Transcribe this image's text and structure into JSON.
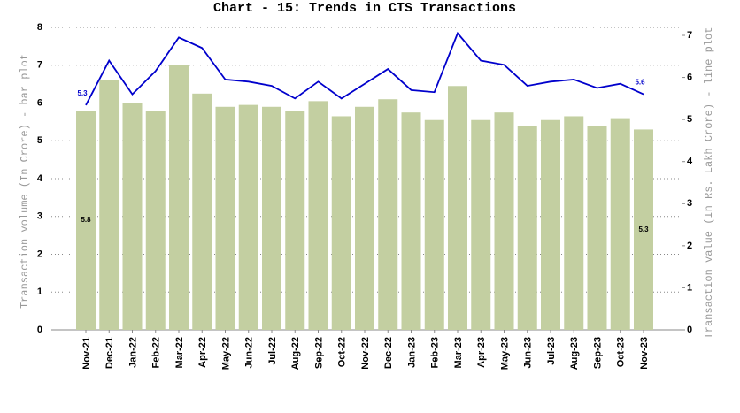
{
  "chart_data": {
    "type": "bar_line",
    "title": "Chart - 15: Trends in CTS Transactions",
    "y_label": "Transaction volume (In Crore) - bar plot",
    "y2_label": "Transaction value (In Rs. Lakh Crore) - line plot",
    "categories": [
      "Nov-21",
      "Dec-21",
      "Jan-22",
      "Feb-22",
      "Mar-22",
      "Apr-22",
      "May-22",
      "Jun-22",
      "Jul-22",
      "Aug-22",
      "Sep-22",
      "Oct-22",
      "Nov-22",
      "Dec-22",
      "Jan-23",
      "Feb-23",
      "Mar-23",
      "Apr-23",
      "May-23",
      "Jun-23",
      "Jul-23",
      "Aug-23",
      "Sep-23",
      "Oct-23",
      "Nov-23"
    ],
    "series": [
      {
        "type": "bar",
        "color": "#c3cfa1",
        "values": [
          5.8,
          6.6,
          6.0,
          5.8,
          7.0,
          6.25,
          5.9,
          5.95,
          5.9,
          5.8,
          6.05,
          5.65,
          5.9,
          6.1,
          5.75,
          5.55,
          6.45,
          5.55,
          5.75,
          5.4,
          5.55,
          5.65,
          5.4,
          5.6,
          5.3
        ],
        "value_labels": [
          "5.8",
          null,
          null,
          null,
          null,
          null,
          null,
          null,
          null,
          null,
          null,
          null,
          null,
          null,
          null,
          null,
          null,
          null,
          null,
          null,
          null,
          null,
          null,
          null,
          "5.3"
        ]
      },
      {
        "type": "line",
        "axis": "y2",
        "color": "#0000cc",
        "values": [
          5.34,
          6.4,
          5.6,
          6.15,
          6.95,
          6.7,
          5.95,
          5.9,
          5.8,
          5.5,
          5.9,
          5.5,
          5.85,
          6.2,
          5.7,
          5.65,
          7.05,
          6.4,
          6.3,
          5.8,
          5.9,
          5.95,
          5.75,
          5.85,
          5.6
        ],
        "value_labels": [
          "5.3",
          null,
          null,
          null,
          null,
          null,
          null,
          null,
          null,
          null,
          null,
          null,
          null,
          null,
          null,
          null,
          null,
          null,
          null,
          null,
          null,
          null,
          null,
          null,
          "5.6"
        ]
      }
    ],
    "ylim": [
      0,
      8
    ],
    "yticks": [
      0,
      1,
      2,
      3,
      4,
      5,
      6,
      7,
      8
    ],
    "y2lim": [
      0,
      7
    ],
    "y2ticks": [
      0,
      1,
      2,
      3,
      4,
      5,
      6,
      7
    ],
    "grid": true
  }
}
